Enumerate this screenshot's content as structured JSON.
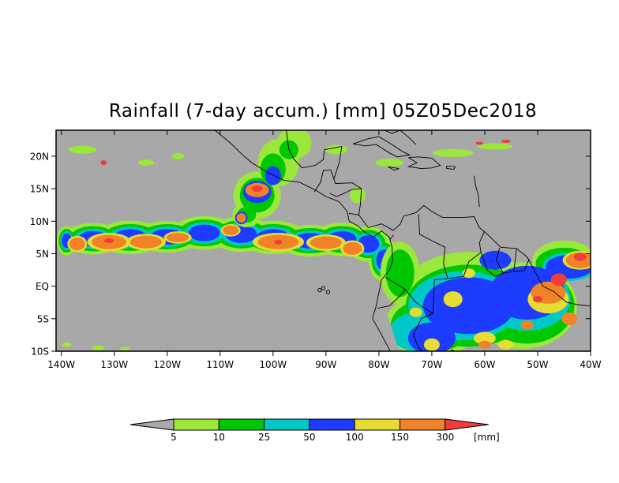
{
  "title": "Rainfall (7-day accum.) [mm] 05Z05Dec2018",
  "map": {
    "background_color": "#a8a8a8",
    "lat_labels": [
      "20N",
      "15N",
      "10N",
      "5N",
      "EQ",
      "5S",
      "10S"
    ],
    "lat_values": [
      20,
      15,
      10,
      5,
      0,
      -5,
      -10
    ],
    "lon_labels": [
      "140W",
      "130W",
      "120W",
      "110W",
      "100W",
      "90W",
      "80W",
      "70W",
      "60W",
      "50W",
      "40W"
    ],
    "lon_values": [
      -140,
      -130,
      -120,
      -110,
      -100,
      -90,
      -80,
      -70,
      -60,
      -50,
      -40
    ],
    "lat_range": [
      -10,
      24
    ],
    "lon_range": [
      -141,
      -40
    ]
  },
  "colorbar": {
    "unit": "[mm]",
    "low_color": "#a8a8a8",
    "high_color": "#f23c3c",
    "bins": [
      {
        "label": "5",
        "color": "#9be73c"
      },
      {
        "label": "10",
        "color": "#00c800"
      },
      {
        "label": "25",
        "color": "#00c8c8"
      },
      {
        "label": "50",
        "color": "#1e3cff"
      },
      {
        "label": "100",
        "color": "#e6dc32"
      },
      {
        "label": "150",
        "color": "#f08228"
      },
      {
        "label": "300",
        "color": ""
      }
    ]
  }
}
